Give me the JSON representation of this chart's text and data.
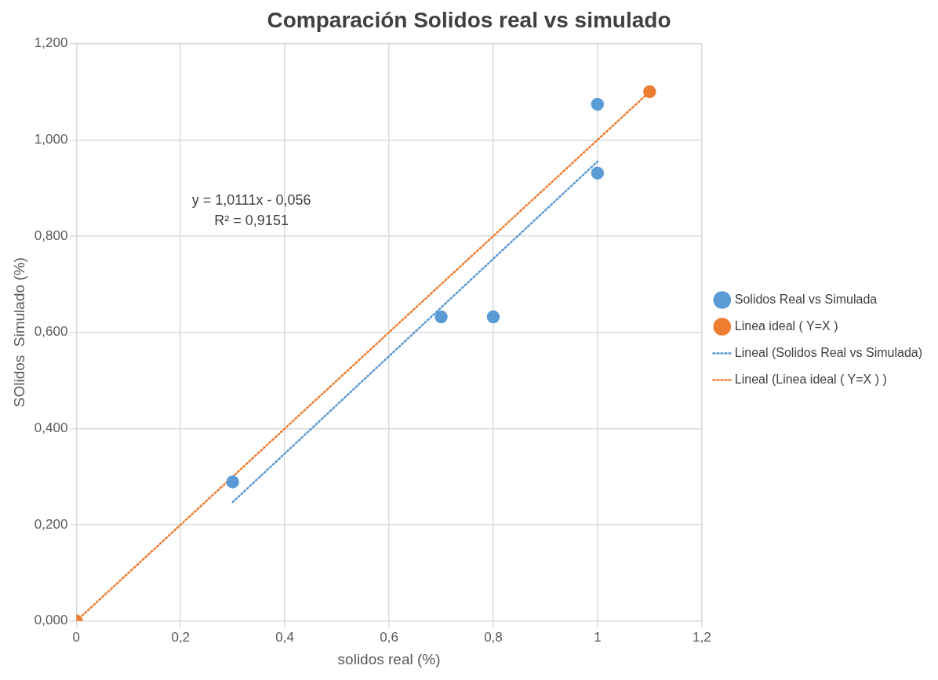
{
  "chart_data": {
    "type": "scatter",
    "title": "Comparación Solidos real vs simulado",
    "xlabel": "solidos real (%)",
    "ylabel": "SOlidos  Simulado (%)",
    "xlim": [
      0,
      1.2
    ],
    "xticks": [
      {
        "value": 0,
        "label": "0"
      },
      {
        "value": 0.2,
        "label": "0,2"
      },
      {
        "value": 0.4,
        "label": "0,4"
      },
      {
        "value": 0.6,
        "label": "0,6"
      },
      {
        "value": 0.8,
        "label": "0,8"
      },
      {
        "value": 1,
        "label": "1"
      },
      {
        "value": 1.2,
        "label": "1,2"
      }
    ],
    "ylim": [
      0,
      1.2
    ],
    "yticks": [
      {
        "value": 0,
        "label": "0,000"
      },
      {
        "value": 0.2,
        "label": "0,200"
      },
      {
        "value": 0.4,
        "label": "0,400"
      },
      {
        "value": 0.6,
        "label": "0,600"
      },
      {
        "value": 0.8,
        "label": "0,800"
      },
      {
        "value": 1,
        "label": "1,000"
      },
      {
        "value": 1.2,
        "label": "1,200"
      }
    ],
    "grid": true,
    "legend": "right",
    "marker": "circle",
    "series": [
      {
        "name": "Solidos Real vs Simulada",
        "color": "#5b9bd5",
        "x": [
          0.3,
          0.7,
          0.8,
          1.0,
          1.0
        ],
        "values": [
          0.289,
          0.632,
          0.632,
          1.074,
          0.931
        ]
      },
      {
        "name": "Linea ideal ( Y=X )",
        "color": "#ed7d31",
        "x": [
          0,
          1.1
        ],
        "values": [
          0,
          1.1
        ]
      },
      {
        "name": "Lineal (Solidos Real vs Simulada)",
        "type": "line",
        "marker": "none",
        "line_style": "dotted",
        "color": "#5b9bd5",
        "x": [
          0.3,
          1.0
        ],
        "values": [
          0.247,
          0.955
        ]
      },
      {
        "name": "Lineal (Linea ideal ( Y=X ) )",
        "type": "line",
        "marker": "none",
        "line_style": "dotted",
        "color": "#ed7d31",
        "x": [
          0,
          1.1
        ],
        "values": [
          0,
          1.1
        ]
      }
    ],
    "annotations": [
      "y = 1,0111x - 0,056",
      "R² = 0,9151"
    ]
  }
}
